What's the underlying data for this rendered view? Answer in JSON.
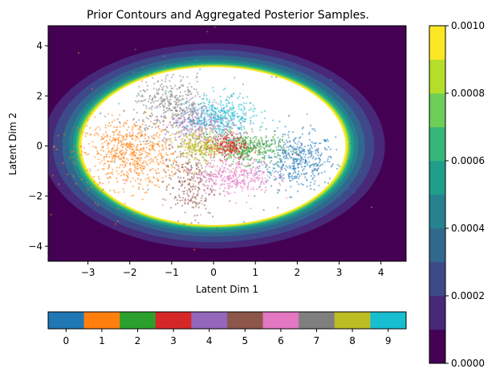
{
  "chart_data": {
    "type": "scatter",
    "title": "Prior Contours and Aggregated Posterior Samples.",
    "xlabel": "Latent Dim 1",
    "ylabel": "Latent Dim 2",
    "xlim": [
      -3.95,
      4.6
    ],
    "ylim": [
      -4.6,
      4.8
    ],
    "xticks": [
      "−3",
      "−2",
      "−1",
      "0",
      "1",
      "2",
      "3",
      "4"
    ],
    "xtick_values": [
      -3,
      -2,
      -1,
      0,
      1,
      2,
      3,
      4
    ],
    "yticks": [
      "4",
      "2",
      "0",
      "−2",
      "−4"
    ],
    "ytick_values": [
      4,
      2,
      0,
      -2,
      -4
    ],
    "grid": false,
    "background": {
      "type": "filled-contour",
      "description": "prior density, bright rim near radius ~3.2, white interior (clipped above max level)",
      "levels": [
        0.0,
        0.0001,
        0.0002,
        0.0003,
        0.0004,
        0.0005,
        0.0006,
        0.0007,
        0.0008,
        0.0009,
        0.001
      ],
      "colors": [
        "#440154",
        "#482878",
        "#3e4989",
        "#31688e",
        "#26828e",
        "#1f9e89",
        "#35b779",
        "#6ece58",
        "#b5de2b",
        "#fde725"
      ]
    },
    "density_colorbar": {
      "ticks": [
        "0.0000",
        "0.0002",
        "0.0004",
        "0.0006",
        "0.0008",
        "0.0010"
      ],
      "tick_values": [
        0.0,
        0.0002,
        0.0004,
        0.0006,
        0.0008,
        0.001
      ]
    },
    "class_colorbar": {
      "labels": [
        "0",
        "1",
        "2",
        "3",
        "4",
        "5",
        "6",
        "7",
        "8",
        "9"
      ]
    },
    "series": [
      {
        "class": "0",
        "color": "#1f77b4",
        "center": [
          2.0,
          -0.6
        ],
        "spread": [
          0.45,
          0.55
        ],
        "n": 450
      },
      {
        "class": "1",
        "color": "#ff7f0e",
        "center": [
          -2.0,
          -0.3
        ],
        "spread": [
          0.6,
          0.7
        ],
        "n": 700
      },
      {
        "class": "2",
        "color": "#2ca02c",
        "center": [
          0.8,
          -0.1
        ],
        "spread": [
          0.4,
          0.3
        ],
        "n": 350
      },
      {
        "class": "3",
        "color": "#d62728",
        "center": [
          0.3,
          0.0
        ],
        "spread": [
          0.25,
          0.25
        ],
        "n": 250
      },
      {
        "class": "4",
        "color": "#9467bd",
        "center": [
          -0.3,
          0.9
        ],
        "spread": [
          0.45,
          0.4
        ],
        "n": 300
      },
      {
        "class": "5",
        "color": "#8c564b",
        "center": [
          -0.6,
          -1.5
        ],
        "spread": [
          0.3,
          0.7
        ],
        "n": 250
      },
      {
        "class": "6",
        "color": "#e377c2",
        "center": [
          0.5,
          -1.2
        ],
        "spread": [
          0.45,
          0.35
        ],
        "n": 350
      },
      {
        "class": "7",
        "color": "#7f7f7f",
        "center": [
          -1.0,
          1.6
        ],
        "spread": [
          0.45,
          0.6
        ],
        "n": 400
      },
      {
        "class": "8",
        "color": "#bcbd22",
        "center": [
          -0.3,
          0.0
        ],
        "spread": [
          0.3,
          0.3
        ],
        "n": 300
      },
      {
        "class": "9",
        "color": "#17becf",
        "center": [
          0.2,
          1.2
        ],
        "spread": [
          0.4,
          0.4
        ],
        "n": 350
      }
    ]
  }
}
